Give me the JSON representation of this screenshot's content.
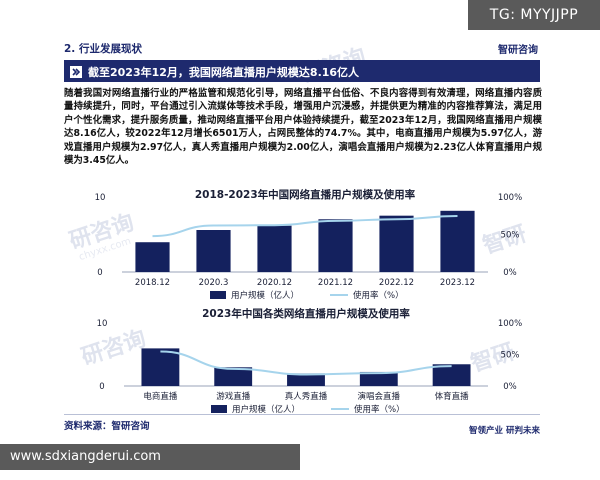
{
  "watermark_top": "TG: MYYJJPP",
  "watermark_bottom": "www.sdxiangderui.com",
  "header": {
    "section": "2. 行业发展现状",
    "brand": "智研咨询"
  },
  "banner": "截至2023年12月，我国网络直播用户规模达8.16亿人",
  "paragraph": "随着我国对网络直播行业的严格监管和规范化引导，网络直播平台低俗、不良内容得到有效清理，网络直播内容质量持续提升，同时，平台通过引入流媒体等技术手段，增强用户沉浸感，并提供更为精准的内容推荐算法，满足用户个性化需求，提升服务质量，推动网络直播平台用户体验持续提升，截至2023年12月，我国网络直播用户规模达8.16亿人，较2022年12月增长6501万人，占网民整体的74.7%。其中，电商直播用户规模为5.97亿人，游戏直播用户规模为2.97亿人，真人秀直播用户规模为2.00亿人，演唱会直播用户规模为2.23亿人体育直播用户规模为3.45亿人。",
  "chart_data": [
    {
      "type": "bar",
      "title": "2018-2023年中国网络直播用户规模及使用率",
      "categories": [
        "2018.12",
        "2020.3",
        "2020.12",
        "2021.12",
        "2022.12",
        "2023.12"
      ],
      "series": [
        {
          "name": "用户规模（亿人）",
          "type": "bar",
          "axis": "left",
          "values": [
            3.97,
            5.6,
            6.17,
            7.03,
            7.51,
            8.16
          ]
        },
        {
          "name": "使用率（%）",
          "type": "line",
          "axis": "right",
          "values": [
            47.9,
            62.0,
            62.4,
            68.2,
            70.3,
            74.7
          ]
        }
      ],
      "yticks_left": [
        "0",
        "5",
        "10"
      ],
      "ylim_left": [
        0,
        10
      ],
      "yticks_right": [
        "0%",
        "50%",
        "100%"
      ],
      "ylim_right": [
        0,
        100
      ],
      "legend": "bottom-center",
      "colors": {
        "bar": "#14215e",
        "line": "#a6d4ec"
      }
    },
    {
      "type": "bar",
      "title": "2023年中国各类网络直播用户规模及使用率",
      "categories": [
        "电商直播",
        "游戏直播",
        "真人秀直播",
        "演唱会直播",
        "体育直播"
      ],
      "series": [
        {
          "name": "用户规模（亿人）",
          "type": "bar",
          "axis": "left",
          "values": [
            5.97,
            2.97,
            2.0,
            2.23,
            3.45
          ]
        },
        {
          "name": "使用率（%）",
          "type": "line",
          "axis": "right",
          "values": [
            54.7,
            27.2,
            18.3,
            20.4,
            31.6
          ]
        }
      ],
      "yticks_left": [
        "0",
        "5",
        "10"
      ],
      "ylim_left": [
        0,
        10
      ],
      "yticks_right": [
        "0%",
        "50%",
        "100%"
      ],
      "ylim_right": [
        0,
        100
      ],
      "legend": "bottom-center",
      "colors": {
        "bar": "#14215e",
        "line": "#a6d4ec"
      }
    }
  ],
  "footer": {
    "source": "资料来源：智研咨询",
    "slogan": "智领产业  研判未来"
  }
}
